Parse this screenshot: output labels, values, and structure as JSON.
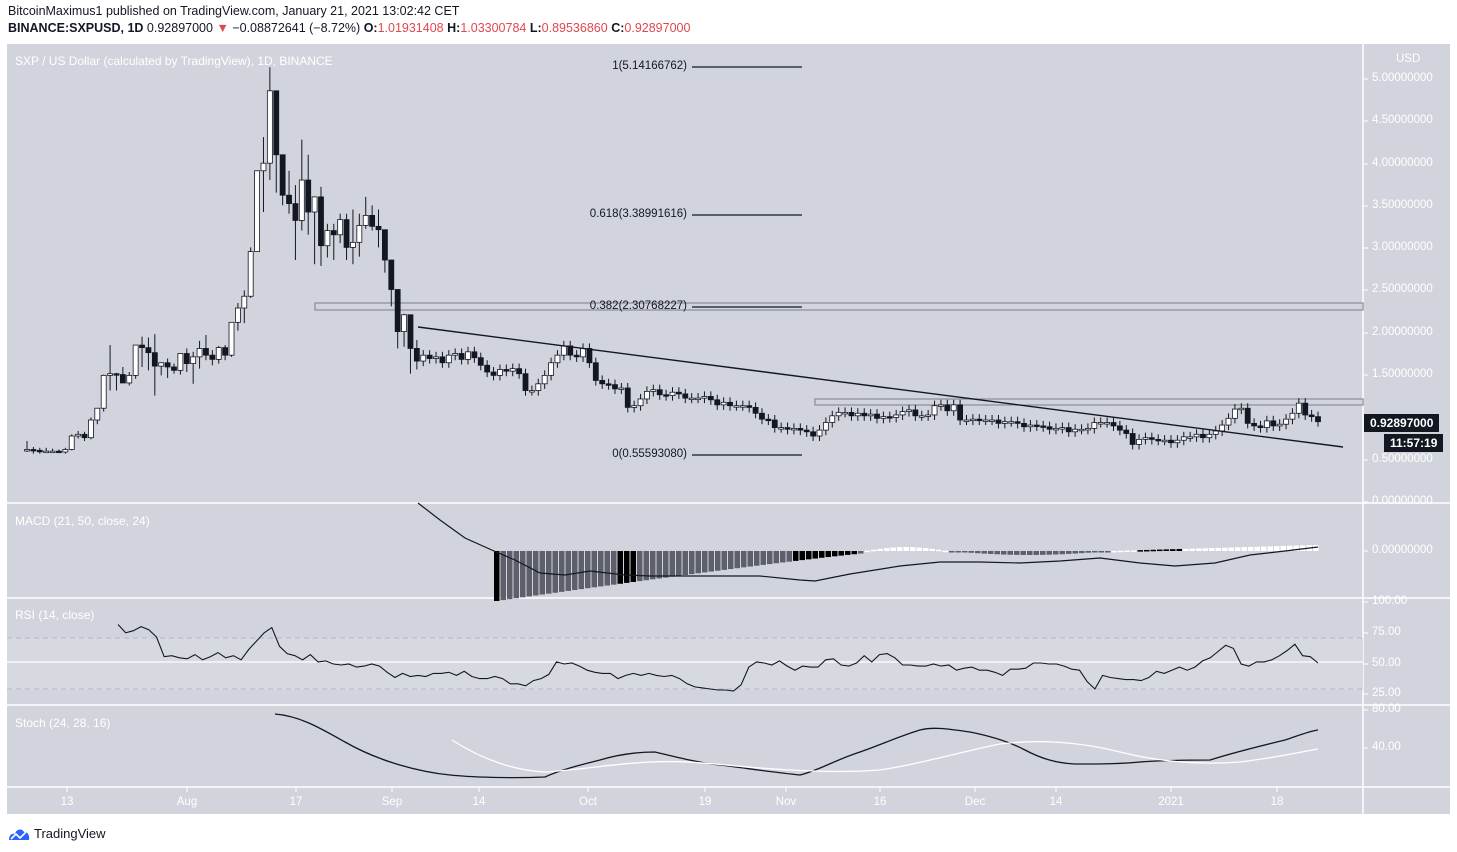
{
  "header": {
    "line1": "BitcoinMaximus1 published on TradingView.com, January 21, 2021 13:02:42 CET",
    "symbol": "BINANCE:SXPUSD, 1D",
    "last": "0.92897000",
    "change_arrow": "▼",
    "change": "−0.08872641 (−8.72%)",
    "o_label": "O:",
    "o": "1.01931408",
    "h_label": "H:",
    "h": "1.03300784",
    "l_label": "L:",
    "l": "0.89536860",
    "c_label": "C:",
    "c": "0.92897000"
  },
  "panes": {
    "price_title": "SXP / US Dollar (calculated by TradingView), 1D, BINANCE",
    "macd_title": "MACD (21, 50, close, 24)",
    "rsi_title": "RSI (14, close)",
    "stoch_title": "Stoch (24, 28, 16)"
  },
  "price_axis": {
    "currency": "USD",
    "ticks": [
      "5.00000000",
      "4.50000000",
      "4.00000000",
      "3.50000000",
      "3.00000000",
      "2.50000000",
      "2.00000000",
      "1.50000000",
      "0.50000000",
      "0.00000000"
    ],
    "current_price": "0.92897000",
    "countdown": "11:57:19"
  },
  "macd_axis": {
    "ticks": [
      "0.00000000"
    ]
  },
  "rsi_axis": {
    "ticks": [
      "100.00",
      "75.00",
      "50.00",
      "25.00"
    ]
  },
  "stoch_axis": {
    "ticks": [
      "80.00",
      "40.00"
    ]
  },
  "time_axis": {
    "labels": [
      "13",
      "Aug",
      "17",
      "Sep",
      "14",
      "Oct",
      "19",
      "Nov",
      "16",
      "Dec",
      "14",
      "2021",
      "18"
    ]
  },
  "fib_levels": [
    {
      "label": "1(5.14166762)"
    },
    {
      "label": "0.618(3.38991616)"
    },
    {
      "label": "0.382(2.30768227)"
    },
    {
      "label": "0(0.55593080)"
    }
  ],
  "footer": {
    "brand": "TradingView"
  },
  "colors": {
    "pane_bg": "#d1d4dc",
    "candle_down": "#131722",
    "candle_up": "#ffffff",
    "accent_red": "#e0484d",
    "brand_blue": "#2962ff"
  },
  "chart_data": [
    {
      "type": "candlestick",
      "title": "SXP / US Dollar (calculated by TradingView), 1D, BINANCE",
      "ylabel": "USD",
      "ylim": [
        0,
        5.2
      ],
      "x_start": "2020-07-08",
      "x_end": "2021-01-21",
      "ohlc_approx": [
        [
          0.6,
          0.7,
          0.57,
          0.6
        ],
        [
          0.6,
          0.63,
          0.55,
          0.59
        ],
        [
          0.59,
          0.62,
          0.55,
          0.58
        ],
        [
          0.58,
          0.62,
          0.56,
          0.58
        ],
        [
          0.58,
          0.61,
          0.56,
          0.58
        ],
        [
          0.58,
          0.6,
          0.56,
          0.57
        ],
        [
          0.57,
          0.62,
          0.55,
          0.6
        ],
        [
          0.6,
          0.78,
          0.59,
          0.76
        ],
        [
          0.76,
          0.82,
          0.73,
          0.78
        ],
        [
          0.78,
          0.81,
          0.7,
          0.74
        ],
        [
          0.74,
          0.98,
          0.72,
          0.95
        ],
        [
          0.95,
          1.09,
          0.9,
          1.09
        ],
        [
          1.09,
          1.49,
          1.05,
          1.48
        ],
        [
          1.48,
          1.84,
          1.3,
          1.5
        ],
        [
          1.5,
          1.51,
          1.3,
          1.49
        ],
        [
          1.49,
          1.58,
          1.4,
          1.39
        ],
        [
          1.39,
          1.52,
          1.36,
          1.48
        ],
        [
          1.48,
          1.84,
          1.44,
          1.84
        ],
        [
          1.84,
          1.94,
          1.58,
          1.81
        ],
        [
          1.81,
          1.93,
          1.54,
          1.75
        ],
        [
          1.75,
          1.97,
          1.24,
          1.59
        ],
        [
          1.59,
          1.62,
          1.48,
          1.63
        ],
        [
          1.63,
          1.68,
          1.45,
          1.58
        ],
        [
          1.58,
          1.62,
          1.5,
          1.54
        ],
        [
          1.54,
          1.73,
          1.49,
          1.74
        ],
        [
          1.74,
          1.8,
          1.52,
          1.62
        ],
        [
          1.62,
          1.76,
          1.38,
          1.7
        ],
        [
          1.7,
          1.89,
          1.56,
          1.8
        ],
        [
          1.8,
          1.96,
          1.66,
          1.72
        ],
        [
          1.72,
          1.78,
          1.6,
          1.67
        ],
        [
          1.67,
          1.83,
          1.62,
          1.81
        ],
        [
          1.81,
          1.84,
          1.66,
          1.72
        ],
        [
          1.72,
          2.1,
          1.7,
          2.11
        ],
        [
          2.11,
          2.34,
          2.01,
          2.28
        ],
        [
          2.28,
          2.49,
          2.1,
          2.42
        ],
        [
          2.42,
          3.0,
          2.4,
          2.95
        ],
        [
          2.95,
          3.91,
          2.95,
          3.91
        ],
        [
          3.91,
          4.31,
          3.42,
          4.0
        ],
        [
          4.0,
          5.14,
          3.8,
          4.86
        ],
        [
          4.86,
          4.62,
          3.65,
          4.1
        ],
        [
          4.1,
          3.98,
          3.5,
          3.62
        ],
        [
          3.62,
          3.91,
          3.4,
          3.52
        ],
        [
          3.52,
          3.74,
          2.85,
          3.32
        ],
        [
          3.32,
          4.28,
          3.2,
          3.8
        ],
        [
          3.8,
          4.1,
          3.15,
          3.42
        ],
        [
          3.42,
          3.6,
          2.8,
          3.6
        ],
        [
          3.6,
          3.72,
          2.78,
          3.02
        ],
        [
          3.02,
          3.28,
          2.88,
          3.2
        ],
        [
          3.2,
          3.28,
          2.85,
          3.15
        ],
        [
          3.15,
          3.4,
          3.05,
          3.33
        ],
        [
          3.33,
          3.4,
          2.85,
          3.0
        ],
        [
          3.0,
          3.45,
          2.8,
          3.06
        ],
        [
          3.06,
          3.4,
          2.89,
          3.26
        ],
        [
          3.26,
          3.6,
          3.22,
          3.38
        ],
        [
          3.38,
          3.5,
          3.2,
          3.25
        ],
        [
          3.25,
          3.45,
          3.0,
          3.21
        ],
        [
          3.21,
          3.1,
          2.7,
          2.85
        ],
        [
          2.85,
          2.62,
          2.3,
          2.5
        ],
        [
          2.5,
          2.42,
          1.8,
          2.0
        ],
        [
          2.0,
          2.21,
          1.82,
          2.2
        ],
        [
          2.2,
          2.18,
          1.5,
          1.8
        ],
        [
          1.8,
          1.9,
          1.55,
          1.65
        ]
      ],
      "annotations": [
        {
          "type": "fib_retracement",
          "levels": [
            {
              "ratio": 1,
              "price": 5.14166762
            },
            {
              "ratio": 0.618,
              "price": 3.38991616
            },
            {
              "ratio": 0.382,
              "price": 2.30768227
            },
            {
              "ratio": 0,
              "price": 0.5559308
            }
          ]
        },
        {
          "type": "resistance_box",
          "price_range": [
            2.28,
            2.36
          ]
        },
        {
          "type": "resistance_box",
          "price_range": [
            1.16,
            1.23
          ]
        },
        {
          "type": "descending_trendline",
          "from": {
            "date": "2020-09-06",
            "price": 2.07
          },
          "to": {
            "date": "2021-01-22",
            "price": 0.68
          }
        }
      ],
      "last_price": 0.92897,
      "current_ohlc": {
        "open": 1.01931408,
        "high": 1.03300784,
        "low": 0.8953686,
        "close": 0.92897
      }
    },
    {
      "type": "bar+line",
      "title": "MACD (21, 50, close, 24)",
      "ylim_hint": "centered at 0.00000000",
      "description": "Histogram deeply negative mid-Sep, shrinking through Oct, flips slightly positive mid-Nov, slightly negative mid-Dec, positive in Jan; signal line falls from high in Aug to trough in Sep, rises gradually to near zero by Jan 21."
    },
    {
      "type": "line",
      "title": "RSI (14, close)",
      "ylim": [
        0,
        100
      ],
      "bands": [
        30,
        70
      ],
      "middle": 50,
      "values_approx": [
        88,
        80,
        82,
        86,
        83,
        76,
        57,
        58,
        56,
        55,
        59,
        54,
        57,
        61,
        56,
        58,
        54,
        64,
        72,
        80,
        85,
        67,
        60,
        58,
        54,
        59,
        52,
        53,
        50,
        49,
        50,
        47,
        48,
        50,
        48,
        42,
        37,
        41,
        38,
        39,
        38,
        41,
        41,
        42,
        39,
        43,
        38,
        36,
        36,
        38,
        36,
        31,
        31,
        29,
        34,
        36,
        40,
        52,
        50,
        51,
        48,
        44,
        42,
        41,
        41,
        36,
        39,
        41,
        39,
        41,
        39,
        38,
        39,
        36,
        31,
        28,
        27,
        26,
        25,
        25,
        24,
        30,
        47,
        52,
        51,
        49,
        53,
        48,
        44,
        48,
        47,
        47,
        54,
        55,
        49,
        48,
        51,
        58,
        52,
        59,
        60,
        56,
        49,
        49,
        48,
        48,
        50,
        48,
        49,
        44,
        46,
        47,
        44,
        44,
        42,
        39,
        45,
        45,
        46,
        51,
        51,
        50,
        50,
        48,
        45,
        44,
        33,
        26,
        39,
        37,
        36,
        35,
        35,
        34,
        37,
        43,
        41,
        44,
        47,
        44,
        47,
        53,
        56,
        62,
        68,
        65,
        50,
        48,
        52,
        52,
        54,
        58,
        63,
        69,
        58,
        57,
        51
      ]
    },
    {
      "type": "line",
      "title": "Stoch (24, 28, 16)",
      "ylim": [
        0,
        100
      ],
      "series": [
        {
          "name": "%K",
          "color": "#000000",
          "description": "~77 in mid-Aug, falls to ~12 late Sep, ~35 early Oct, ~15 early Nov, peaks ~57 late Nov, ~24 mid-Dec through early Jan, rises to ~59 by Jan 21"
        },
        {
          "name": "%D",
          "color": "#ffffff",
          "description": "~52 early Sep, ~24 late Sep, ~33 mid-Oct, ~28 early Nov, ~47 mid-Dec, ~30 early Jan, ~38 by Jan 21"
        }
      ]
    }
  ]
}
